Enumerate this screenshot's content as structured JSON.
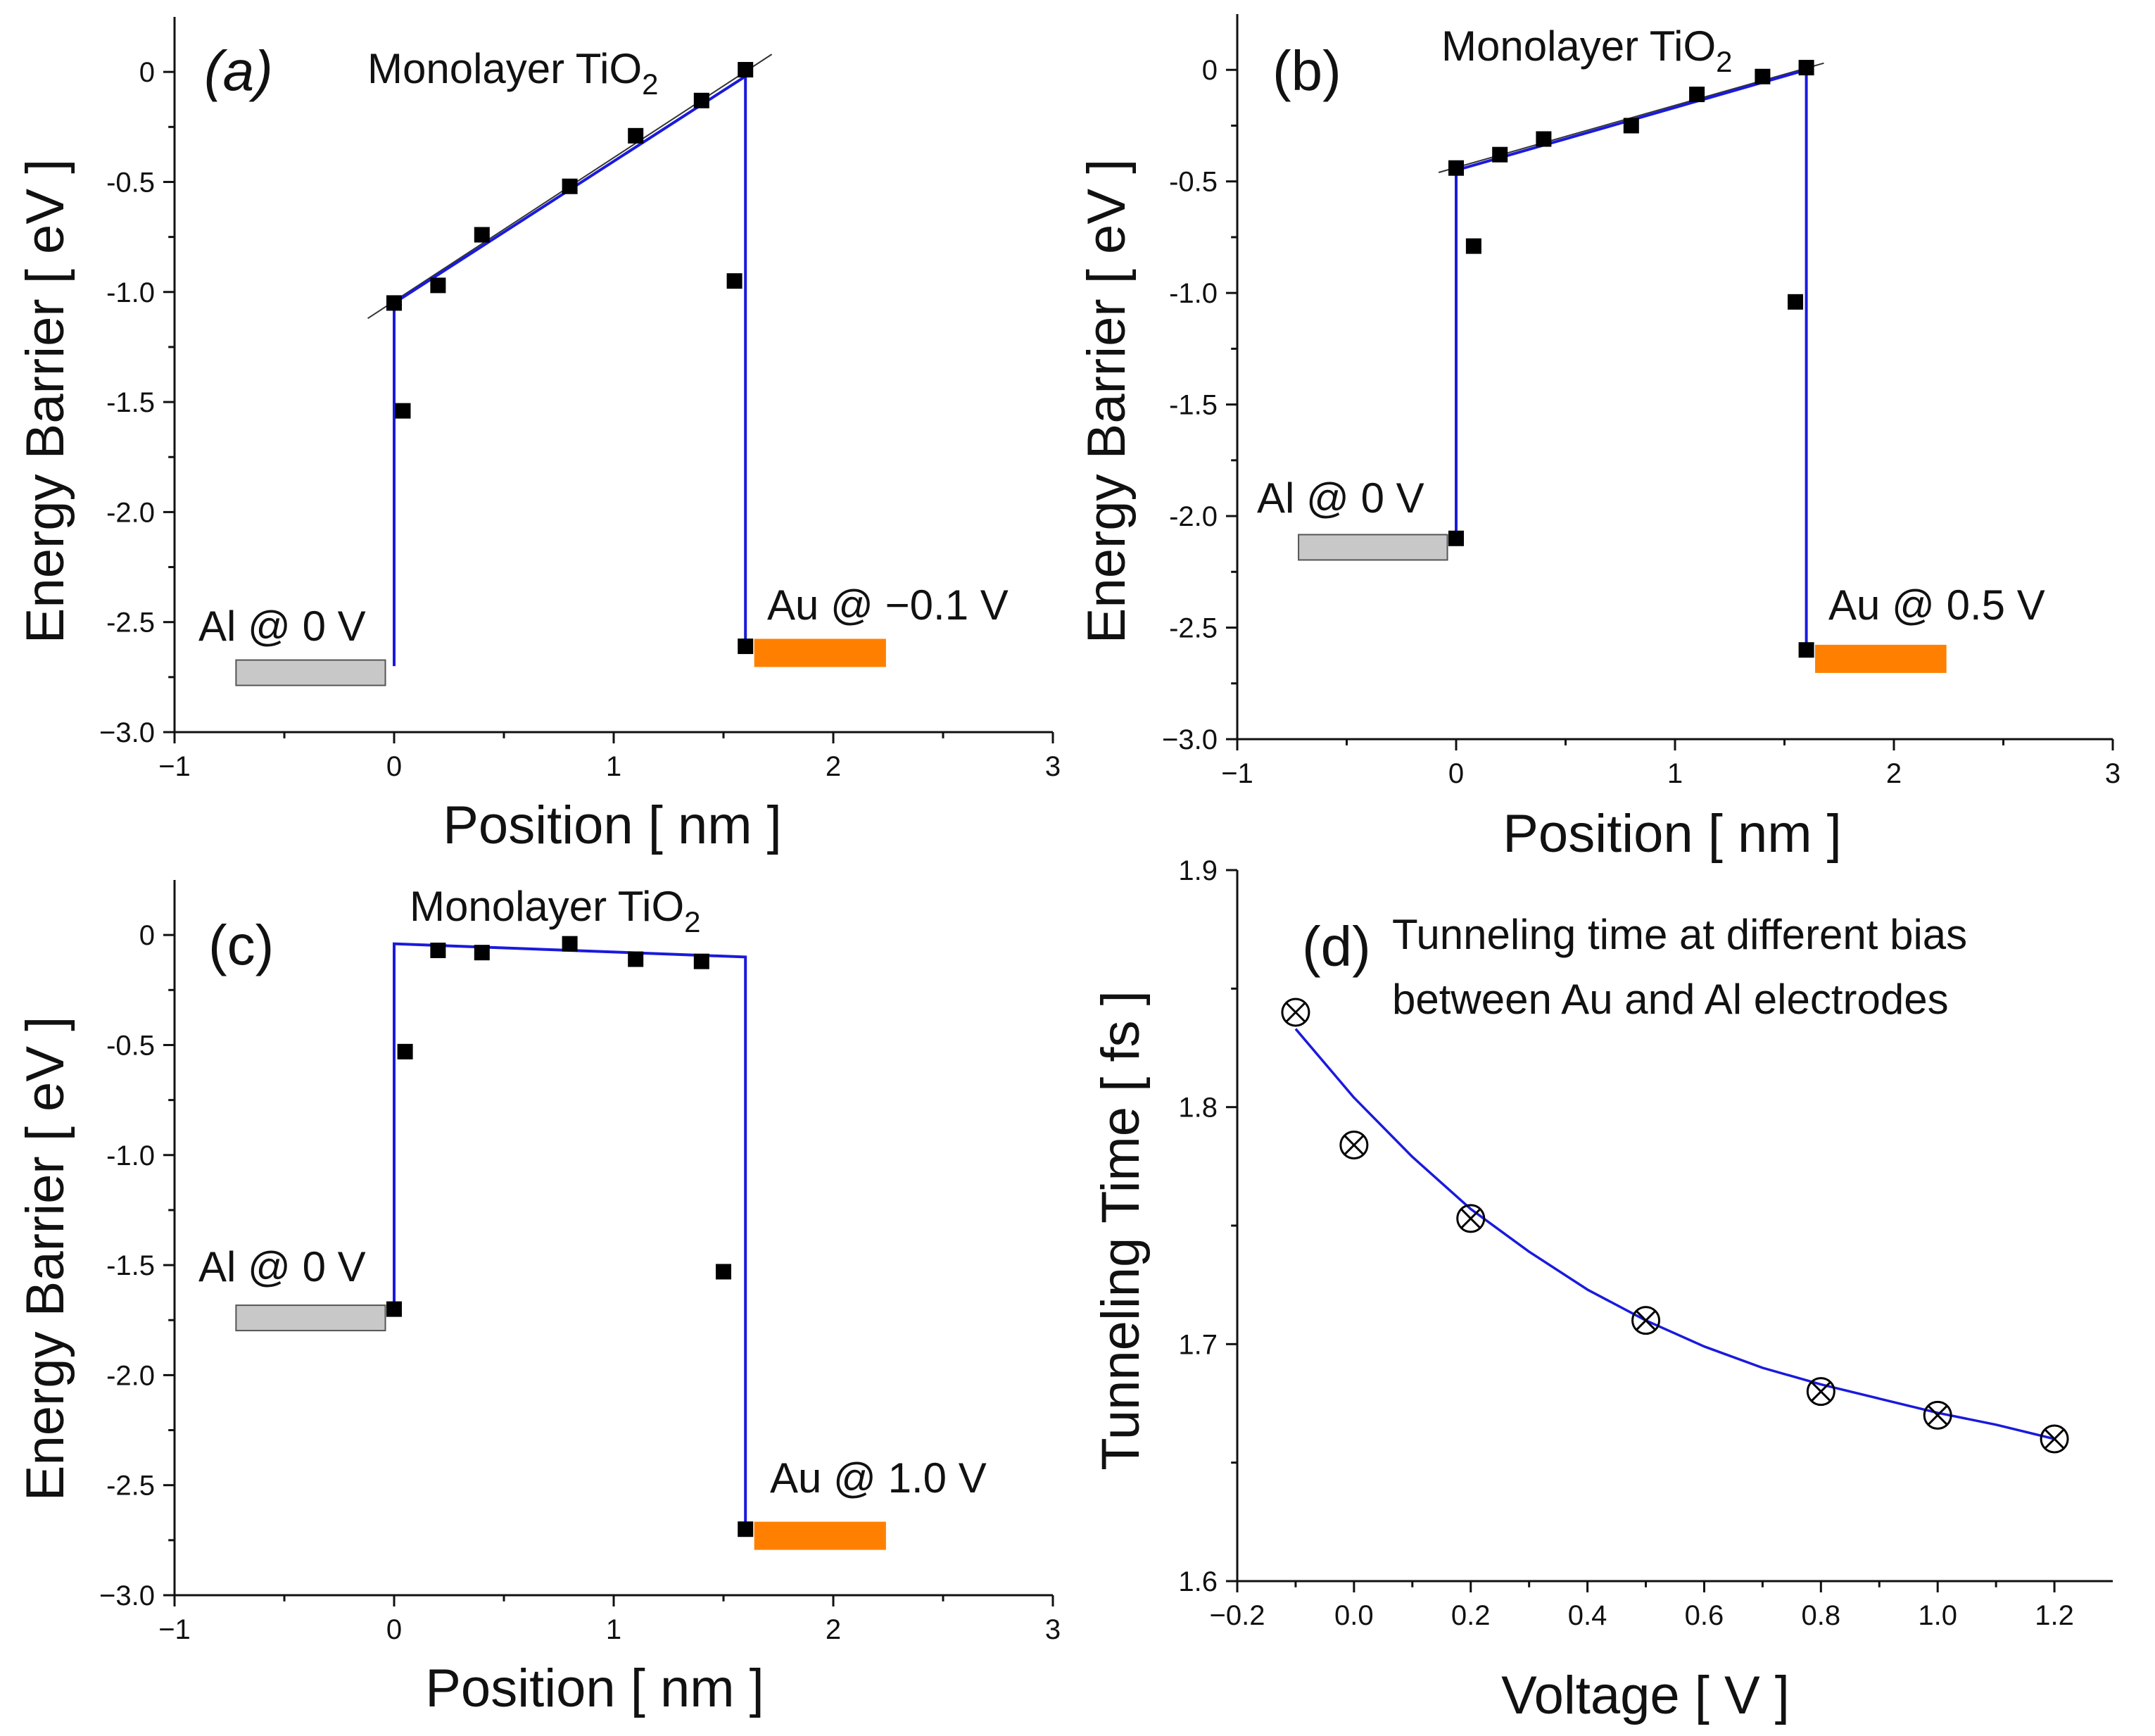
{
  "colors": {
    "fit_line": "#1a1adc",
    "al_bar": "#c8c8c8",
    "au_bar": "#ff8000",
    "marker": "#000000",
    "axis": "#111111",
    "thin_fit": "#333333"
  },
  "chart_data": [
    {
      "id": "a",
      "type": "scatter",
      "panel_label": "(a)",
      "panel_label_italic": true,
      "annotation_title": "Monolayer TiO",
      "annotation_sub": "2",
      "xlabel": "Position [ nm ]",
      "ylabel": "Energy Barrier [ eV ]",
      "xlim": [
        -1,
        3
      ],
      "ylim": [
        -3.0,
        0.25
      ],
      "x_ticks": [
        -1,
        0,
        1,
        2,
        3
      ],
      "x_tick_labels": [
        "−1",
        "0",
        "1",
        "2",
        "3"
      ],
      "y_ticks": [
        0,
        -0.5,
        -1.0,
        -1.5,
        -2.0,
        -2.5,
        -3.0
      ],
      "y_tick_labels": [
        "0",
        "-0.5",
        "-1.0",
        "-1.5",
        "-2.0",
        "-2.5",
        "−3.0"
      ],
      "points": {
        "x": [
          0.0,
          0.04,
          0.2,
          0.4,
          0.8,
          1.1,
          1.4,
          1.6,
          1.55,
          1.6
        ],
        "y": [
          -1.05,
          -1.54,
          -0.97,
          -0.74,
          -0.52,
          -0.29,
          -0.13,
          0.01,
          -0.95,
          -2.61
        ]
      },
      "barrier_line": {
        "x": [
          0.0,
          0.0,
          1.6,
          1.6
        ],
        "y": [
          -2.7,
          -1.05,
          -0.02,
          -2.61
        ]
      },
      "thin_fit": {
        "x": [
          -0.12,
          1.72
        ],
        "y": [
          -1.12,
          0.08
        ]
      },
      "al_label": "Al @ 0 V",
      "al_bar": {
        "x": [
          -0.72,
          -0.04
        ],
        "y": -2.73
      },
      "au_label": "Au @ −0.1 V",
      "au_bar": {
        "x": [
          1.64,
          2.24
        ],
        "y": -2.64
      }
    },
    {
      "id": "b",
      "type": "scatter",
      "panel_label": "(b)",
      "panel_label_italic": false,
      "annotation_title": "Monolayer TiO",
      "annotation_sub": "2",
      "xlabel": "Position [ nm ]",
      "ylabel": "Energy Barrier [ eV ]",
      "xlim": [
        -1,
        3
      ],
      "ylim": [
        -3.0,
        0.25
      ],
      "x_ticks": [
        -1,
        0,
        1,
        2,
        3
      ],
      "x_tick_labels": [
        "−1",
        "0",
        "1",
        "2",
        "3"
      ],
      "y_ticks": [
        0,
        -0.5,
        -1.0,
        -1.5,
        -2.0,
        -2.5,
        -3.0
      ],
      "y_tick_labels": [
        "0",
        "-0.5",
        "-1.0",
        "-1.5",
        "-2.0",
        "-2.5",
        "−3.0"
      ],
      "points": {
        "x": [
          0.0,
          0.08,
          0.2,
          0.4,
          0.8,
          1.1,
          1.4,
          1.6,
          1.55,
          1.6,
          0.0
        ],
        "y": [
          -0.44,
          -0.79,
          -0.38,
          -0.31,
          -0.25,
          -0.11,
          -0.03,
          0.01,
          -1.04,
          -2.6,
          -2.1
        ]
      },
      "barrier_line": {
        "x": [
          0.0,
          0.0,
          1.6,
          1.6
        ],
        "y": [
          -2.1,
          -0.45,
          0.0,
          -2.6
        ]
      },
      "thin_fit": {
        "x": [
          -0.08,
          1.68
        ],
        "y": [
          -0.46,
          0.03
        ]
      },
      "al_label": "Al @ 0 V",
      "al_bar": {
        "x": [
          -0.72,
          -0.04
        ],
        "y": -2.14
      },
      "au_label": "Au @ 0.5 V",
      "au_bar": {
        "x": [
          1.64,
          2.24
        ],
        "y": -2.64
      }
    },
    {
      "id": "c",
      "type": "scatter",
      "panel_label": "(c)",
      "panel_label_italic": false,
      "annotation_title": "Monolayer TiO",
      "annotation_sub": "2",
      "xlabel": "Position [ nm ]",
      "ylabel": "Energy Barrier [ eV ]",
      "xlim": [
        -1,
        3
      ],
      "ylim": [
        -3.0,
        0.25
      ],
      "x_ticks": [
        -1,
        0,
        1,
        2,
        3
      ],
      "x_tick_labels": [
        "−1",
        "0",
        "1",
        "2",
        "3"
      ],
      "y_ticks": [
        0,
        -0.5,
        -1.0,
        -1.5,
        -2.0,
        -2.5,
        -3.0
      ],
      "y_tick_labels": [
        "0",
        "-0.5",
        "-1.0",
        "-1.5",
        "-2.0",
        "-2.5",
        "−3.0"
      ],
      "points": {
        "x": [
          0.0,
          0.05,
          0.2,
          0.4,
          0.8,
          1.1,
          1.4,
          1.5,
          1.6
        ],
        "y": [
          -1.7,
          -0.53,
          -0.07,
          -0.08,
          -0.04,
          -0.11,
          -0.12,
          -1.53,
          -2.7
        ]
      },
      "barrier_line": {
        "x": [
          0.0,
          0.0,
          1.6,
          1.6
        ],
        "y": [
          -1.7,
          -0.04,
          -0.1,
          -2.7
        ]
      },
      "al_label": "Al @ 0 V",
      "al_bar": {
        "x": [
          -0.72,
          -0.04
        ],
        "y": -1.74
      },
      "au_label": "Au @ 1.0 V",
      "au_bar": {
        "x": [
          1.64,
          2.24
        ],
        "y": -2.73
      }
    },
    {
      "id": "d",
      "type": "scatter",
      "panel_label": "(d)",
      "annotation_line1": "Tunneling time at different bias",
      "annotation_line2": "between Au and Al electrodes",
      "xlabel": "Voltage [ V ]",
      "ylabel": "Tunneling Time [ fs ]",
      "xlim": [
        -0.2,
        1.3
      ],
      "ylim": [
        1.6,
        1.9
      ],
      "x_ticks": [
        -0.2,
        0.0,
        0.2,
        0.4,
        0.6,
        0.8,
        1.0,
        1.2
      ],
      "x_tick_labels": [
        "−0.2",
        "0.0",
        "0.2",
        "0.4",
        "0.6",
        "0.8",
        "1.0",
        "1.2"
      ],
      "y_ticks": [
        1.6,
        1.7,
        1.8,
        1.9
      ],
      "y_tick_labels": [
        "1.6",
        "1.7",
        "1.8",
        "1.9"
      ],
      "points": {
        "x": [
          -0.1,
          0.0,
          0.2,
          0.5,
          0.8,
          1.0,
          1.2
        ],
        "y": [
          1.84,
          1.784,
          1.753,
          1.71,
          1.68,
          1.67,
          1.66
        ]
      },
      "fit_curve": {
        "x": [
          -0.1,
          0.0,
          0.1,
          0.2,
          0.3,
          0.4,
          0.5,
          0.6,
          0.7,
          0.8,
          0.9,
          1.0,
          1.1,
          1.2
        ],
        "y": [
          1.833,
          1.804,
          1.779,
          1.757,
          1.739,
          1.723,
          1.71,
          1.699,
          1.69,
          1.683,
          1.677,
          1.671,
          1.666,
          1.66
        ]
      }
    }
  ]
}
